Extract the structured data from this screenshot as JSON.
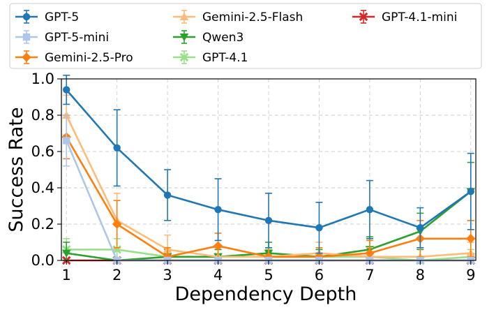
{
  "chart_data": {
    "type": "line",
    "title": "",
    "xlabel": "Dependency Depth",
    "ylabel": "Success Rate",
    "x": [
      1,
      2,
      3,
      4,
      5,
      6,
      7,
      8,
      9
    ],
    "xlim": [
      0.9,
      9.1
    ],
    "ylim": [
      0,
      1.0
    ],
    "yticks": [
      0.0,
      0.2,
      0.4,
      0.6,
      0.8,
      1.0
    ],
    "ytick_labels": [
      "0.0",
      "0.2",
      "0.4",
      "0.6",
      "0.8",
      "1.0"
    ],
    "xtick_labels": [
      "1",
      "2",
      "3",
      "4",
      "5",
      "6",
      "7",
      "8",
      "9"
    ],
    "grid": true,
    "legend_position": "top, outside plot, 3 columns",
    "series": [
      {
        "name": "GPT-5",
        "color": "#1f77b4",
        "marker": "circle",
        "values": [
          0.94,
          0.62,
          0.36,
          0.28,
          0.22,
          0.18,
          0.28,
          0.18,
          0.38
        ],
        "errors": [
          0.08,
          0.21,
          0.14,
          0.17,
          0.15,
          0.14,
          0.16,
          0.11,
          0.21
        ]
      },
      {
        "name": "GPT-5-mini",
        "color": "#aec7e8",
        "marker": "square",
        "values": [
          0.66,
          0.0,
          0.0,
          0.0,
          0.0,
          0.0,
          0.0,
          0.0,
          0.0
        ],
        "errors": [
          0.14,
          0.0,
          0.0,
          0.0,
          0.0,
          0.0,
          0.0,
          0.0,
          0.0
        ]
      },
      {
        "name": "Gemini-2.5-Pro",
        "color": "#ff7f0e",
        "marker": "diamond",
        "values": [
          0.68,
          0.2,
          0.02,
          0.08,
          0.02,
          0.02,
          0.04,
          0.12,
          0.12
        ],
        "errors": [
          0.12,
          0.13,
          0.05,
          0.07,
          0.05,
          0.05,
          0.07,
          0.1,
          0.1
        ]
      },
      {
        "name": "Gemini-2.5-Flash",
        "color": "#ffbb78",
        "marker": "triangle-up",
        "values": [
          0.8,
          0.22,
          0.06,
          0.02,
          0.02,
          0.04,
          0.02,
          0.02,
          0.04
        ],
        "errors": [
          0.11,
          0.15,
          0.08,
          0.05,
          0.05,
          0.06,
          0.05,
          0.05,
          0.06
        ]
      },
      {
        "name": "Qwen3",
        "color": "#2ca02c",
        "marker": "triangle-down",
        "values": [
          0.04,
          0.0,
          0.02,
          0.02,
          0.04,
          0.02,
          0.06,
          0.16,
          0.38
        ],
        "errors": [
          0.06,
          0.0,
          0.04,
          0.04,
          0.06,
          0.04,
          0.07,
          0.1,
          0.16
        ]
      },
      {
        "name": "GPT-4.1",
        "color": "#98df8a",
        "marker": "x",
        "values": [
          0.06,
          0.06,
          0.02,
          0.02,
          0.02,
          0.02,
          0.02,
          0.0,
          0.02
        ],
        "errors": [
          0.06,
          0.06,
          0.04,
          0.04,
          0.04,
          0.04,
          0.04,
          0.0,
          0.04
        ]
      },
      {
        "name": "GPT-4.1-mini",
        "color": "#d62728",
        "marker": "x",
        "values": [
          0.0,
          0.0,
          0.0,
          0.0,
          0.0,
          0.0,
          0.0,
          0.0,
          0.0
        ],
        "errors": [
          0.0,
          0.0,
          0.0,
          0.0,
          0.0,
          0.0,
          0.0,
          0.0,
          0.0
        ]
      }
    ]
  }
}
